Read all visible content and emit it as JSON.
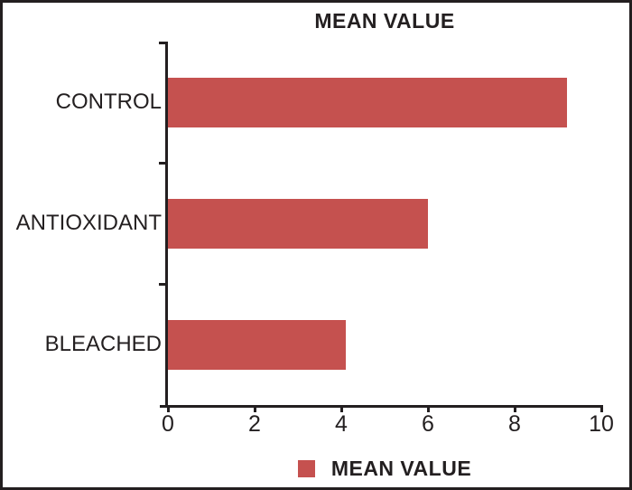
{
  "chart_data": {
    "type": "bar",
    "orientation": "horizontal",
    "title": "MEAN VALUE",
    "categories": [
      "CONTROL",
      "ANTIOXIDANT",
      "BLEACHED"
    ],
    "values": [
      9.2,
      6,
      4.1
    ],
    "series_name": "MEAN VALUE",
    "xlabel": "",
    "ylabel": "",
    "xlim": [
      0,
      10
    ],
    "xticks": [
      0,
      2,
      4,
      6,
      8,
      10
    ],
    "grid": false,
    "legend": {
      "label": "MEAN VALUE",
      "position": "bottom"
    },
    "colors": {
      "bar": "#c5514f",
      "axis": "#231f20",
      "text": "#231f20",
      "background": "#ffffff"
    }
  }
}
